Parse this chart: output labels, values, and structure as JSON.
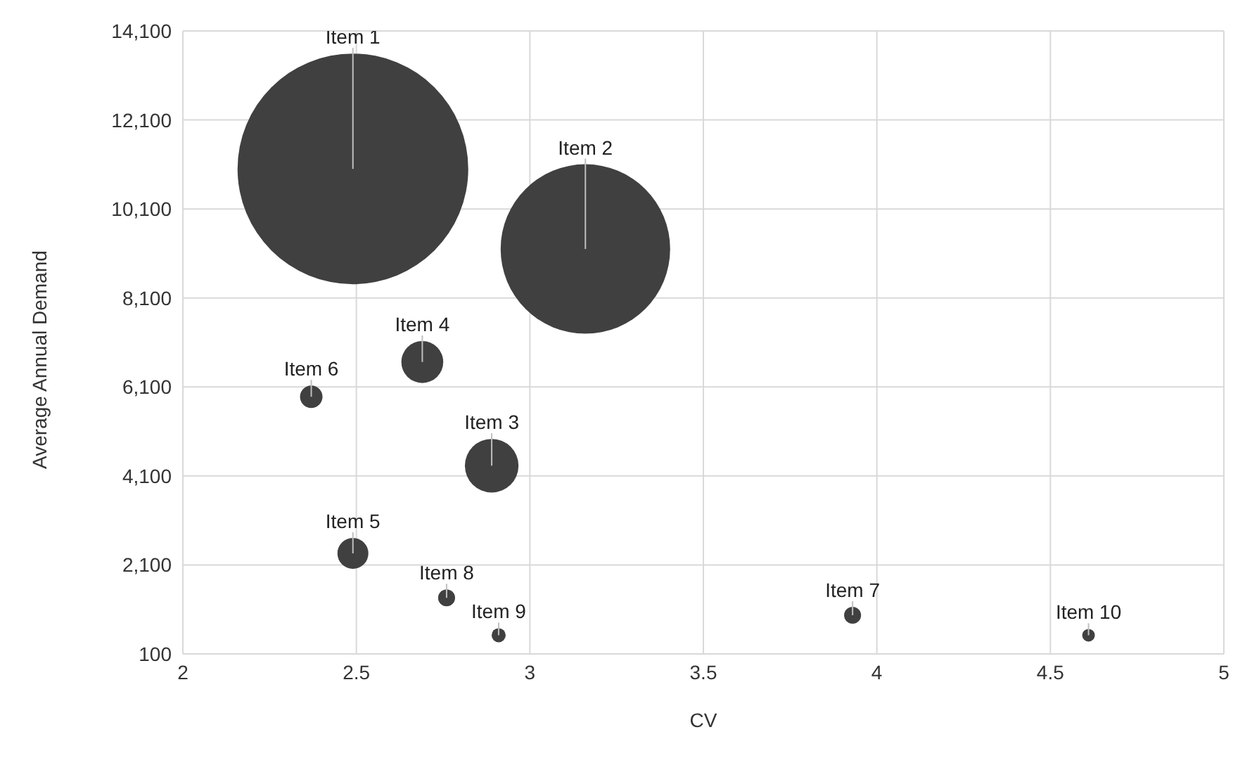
{
  "chart_data": {
    "type": "bubble",
    "xlabel": "CV",
    "ylabel": "Average Annual Demand",
    "x": [
      2.49,
      3.16,
      2.89,
      2.69,
      2.49,
      2.37,
      3.93,
      2.76,
      2.91,
      4.61
    ],
    "values": [
      11000,
      9200,
      4330,
      6660,
      2360,
      5880,
      970,
      1360,
      520,
      520
    ],
    "sizes": [
      1,
      0.54,
      0.054,
      0.033,
      0.018,
      0.0095,
      0.0054,
      0.0054,
      0.0037,
      0.003
    ],
    "color": "#404040",
    "annotations": [
      {
        "text": "Item 1",
        "x": 2.49,
        "y": 11000
      },
      {
        "text": "Item 2",
        "x": 3.16,
        "y": 9200
      },
      {
        "text": "Item 3",
        "x": 2.89,
        "y": 4330
      },
      {
        "text": "Item 4",
        "x": 2.69,
        "y": 6660
      },
      {
        "text": "Item 5",
        "x": 2.49,
        "y": 2360
      },
      {
        "text": "Item 6",
        "x": 2.37,
        "y": 5880
      },
      {
        "text": "Item 7",
        "x": 3.93,
        "y": 970
      },
      {
        "text": "Item 8",
        "x": 2.76,
        "y": 1360
      },
      {
        "text": "Item 9",
        "x": 2.91,
        "y": 520
      },
      {
        "text": "Item 10",
        "x": 4.61,
        "y": 520
      }
    ],
    "xlim": [
      2,
      5
    ],
    "xticks": [
      2,
      2.5,
      3,
      3.5,
      4,
      4.5,
      5
    ],
    "ylim": [
      100,
      14100
    ],
    "yticks": [
      {
        "value": 100,
        "label": "100"
      },
      {
        "value": 2100,
        "label": "2,100"
      },
      {
        "value": 4100,
        "label": "4,100"
      },
      {
        "value": 6100,
        "label": "6,100"
      },
      {
        "value": 8100,
        "label": "8,100"
      },
      {
        "value": 10100,
        "label": "10,100"
      },
      {
        "value": 12100,
        "label": "12,100"
      },
      {
        "value": 14100,
        "label": "14,100"
      }
    ],
    "grid": true,
    "legend": false
  }
}
